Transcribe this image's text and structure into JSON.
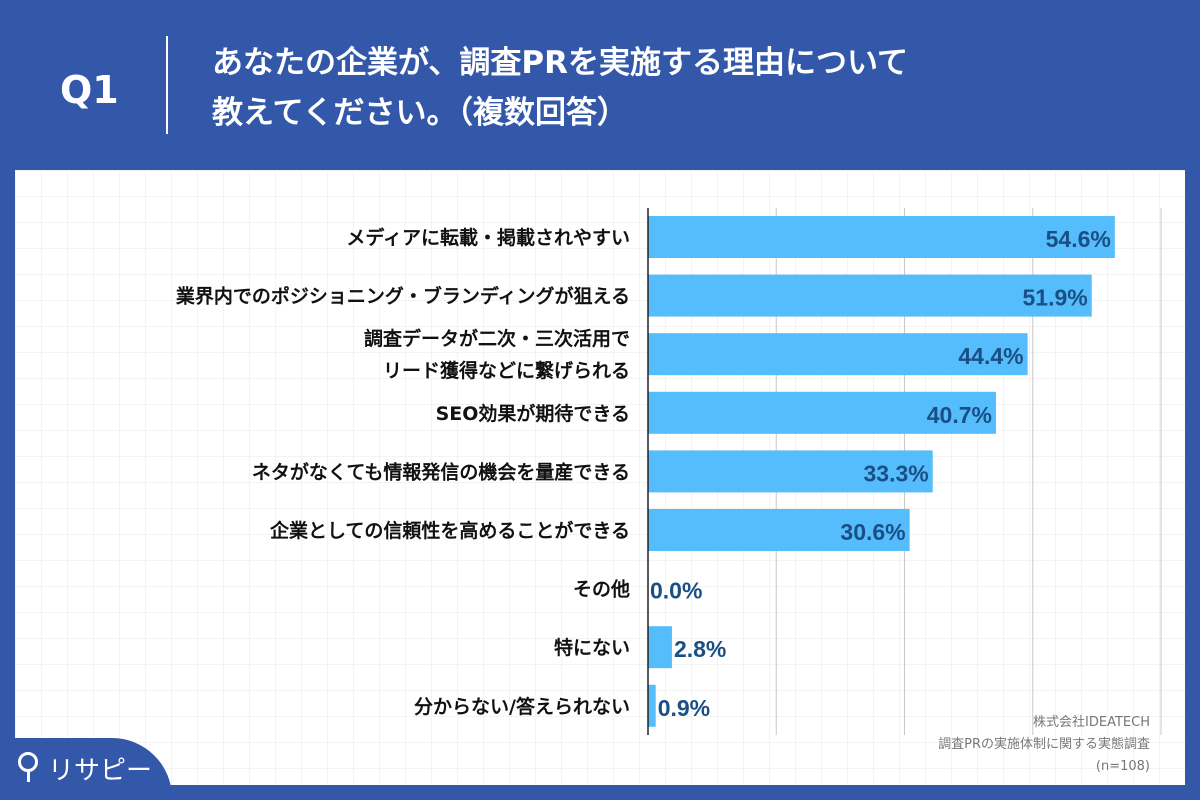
{
  "header": {
    "q_label": "Q1",
    "title_line1": "あなたの企業が、調査PRを実施する理由について",
    "title_line2": "教えてください。（複数回答）"
  },
  "chart_data": {
    "type": "bar",
    "orientation": "horizontal",
    "categories": [
      "メディアに転載・掲載されやすい",
      "業界内でのポジショニング・ブランディングが狙える",
      "調査データが二次・三次活用で\nリード獲得などに繋げられる",
      "SEO効果が期待できる",
      "ネタがなくても情報発信の機会を量産できる",
      "企業としての信頼性を高めることができる",
      "その他",
      "特にない",
      "分からない/答えられない"
    ],
    "values": [
      54.6,
      51.9,
      44.4,
      40.7,
      33.3,
      30.6,
      0.0,
      2.8,
      0.9
    ],
    "data_labels": [
      "54.6%",
      "51.9%",
      "44.4%",
      "40.7%",
      "33.3%",
      "30.6%",
      "0.0%",
      "2.8%",
      "0.9%"
    ],
    "xlim": [
      0,
      60
    ],
    "grid_step": 15,
    "grid": true,
    "colors": {
      "bar": "#55bdfb",
      "label": "#1a4f86",
      "header": "#3358aa"
    }
  },
  "source": {
    "company": "株式会社IDEATECH",
    "survey": "調査PRの実施体制に関する実態調査",
    "n": "(n=108)"
  },
  "logo": {
    "text": "リサピー"
  }
}
